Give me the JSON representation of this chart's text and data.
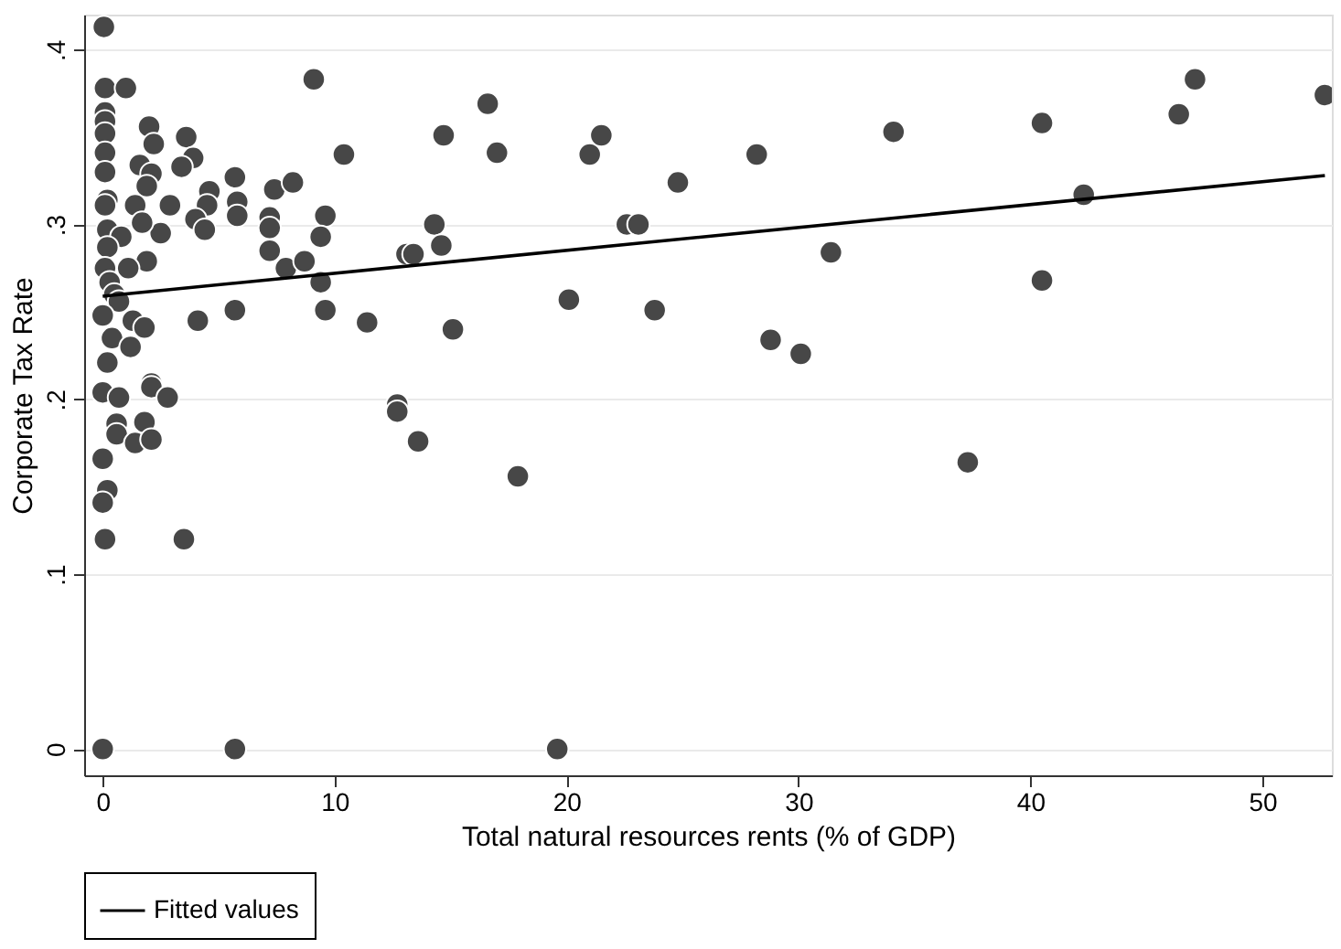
{
  "chart_data": {
    "type": "scatter",
    "xlabel": "Total natural resources rents (% of GDP)",
    "ylabel": "Corporate Tax Rate",
    "xlim": [
      -0.8,
      53
    ],
    "ylim": [
      -0.015,
      0.42
    ],
    "xticks": [
      0,
      10,
      20,
      30,
      40,
      50
    ],
    "yticks": [
      {
        "value": 0,
        "label": "0"
      },
      {
        "value": 0.1,
        "label": ".1"
      },
      {
        "value": 0.2,
        "label": ".2"
      },
      {
        "value": 0.3,
        "label": ".3"
      },
      {
        "value": 0.4,
        "label": ".4"
      }
    ],
    "grid": "y",
    "legend": "bottom",
    "series": [
      {
        "marker": "circle",
        "color": "#474747",
        "x": [
          0.05,
          0.1,
          1.0,
          9.1,
          0.1,
          0.1,
          0.1,
          0.1,
          0.1,
          2.0,
          2.2,
          3.6,
          3.9,
          3.4,
          1.6,
          2.1,
          1.9,
          5.7,
          4.6,
          7.4,
          8.2,
          0.2,
          0.1,
          1.4,
          2.9,
          4.5,
          5.8,
          5.8,
          4.0,
          4.4,
          7.2,
          7.2,
          9.6,
          9.4,
          2.5,
          1.7,
          0.2,
          0.8,
          0.2,
          1.9,
          7.2,
          7.9,
          8.7,
          9.4,
          13.1,
          0.1,
          1.1,
          0.3,
          0.5,
          0.7,
          0,
          1.3,
          1.8,
          4.1,
          5.7,
          9.6,
          11.4,
          0.4,
          1.2,
          2.1,
          0.2,
          0,
          0.7,
          2.1,
          2.8,
          0.6,
          1.8,
          0.6,
          1.4,
          2.1,
          0,
          0.2,
          0,
          0.1,
          3.5,
          0,
          5.7,
          19.6,
          10.4,
          14.7,
          16.6,
          17.0,
          14.3,
          14.6,
          13.4,
          15.1,
          12.7,
          20.1,
          21.0,
          21.5,
          22.6,
          23.1,
          23.8,
          24.8,
          28.2,
          28.8,
          30.1,
          31.4,
          34.1,
          40.5,
          40.5,
          42.3,
          46.4,
          47.1,
          52.7,
          12.7,
          13.6,
          17.9,
          37.3
        ],
        "values": [
          0.413,
          0.378,
          0.378,
          0.383,
          0.364,
          0.359,
          0.352,
          0.341,
          0.33,
          0.356,
          0.346,
          0.35,
          0.338,
          0.333,
          0.334,
          0.329,
          0.322,
          0.327,
          0.319,
          0.32,
          0.324,
          0.314,
          0.311,
          0.311,
          0.311,
          0.311,
          0.313,
          0.305,
          0.303,
          0.297,
          0.304,
          0.298,
          0.305,
          0.293,
          0.295,
          0.301,
          0.297,
          0.293,
          0.287,
          0.279,
          0.285,
          0.275,
          0.279,
          0.267,
          0.283,
          0.275,
          0.275,
          0.267,
          0.26,
          0.256,
          0.248,
          0.245,
          0.241,
          0.245,
          0.251,
          0.251,
          0.244,
          0.235,
          0.23,
          0.209,
          0.221,
          0.204,
          0.201,
          0.207,
          0.201,
          0.186,
          0.187,
          0.18,
          0.175,
          0.177,
          0.166,
          0.148,
          0.141,
          0.12,
          0.12,
          0,
          0,
          0,
          0.34,
          0.351,
          0.369,
          0.341,
          0.3,
          0.288,
          0.283,
          0.24,
          0.197,
          0.257,
          0.34,
          0.351,
          0.3,
          0.3,
          0.251,
          0.324,
          0.34,
          0.234,
          0.226,
          0.284,
          0.353,
          0.358,
          0.268,
          0.317,
          0.363,
          0.383,
          0.374,
          0.193,
          0.176,
          0.156,
          0.164
        ]
      },
      {
        "type": "line",
        "marker": "none",
        "line_style": "solid",
        "name": "Fitted values",
        "color": "#000000",
        "x": [
          0,
          52.7
        ],
        "values": [
          0.259,
          0.328
        ]
      }
    ]
  }
}
